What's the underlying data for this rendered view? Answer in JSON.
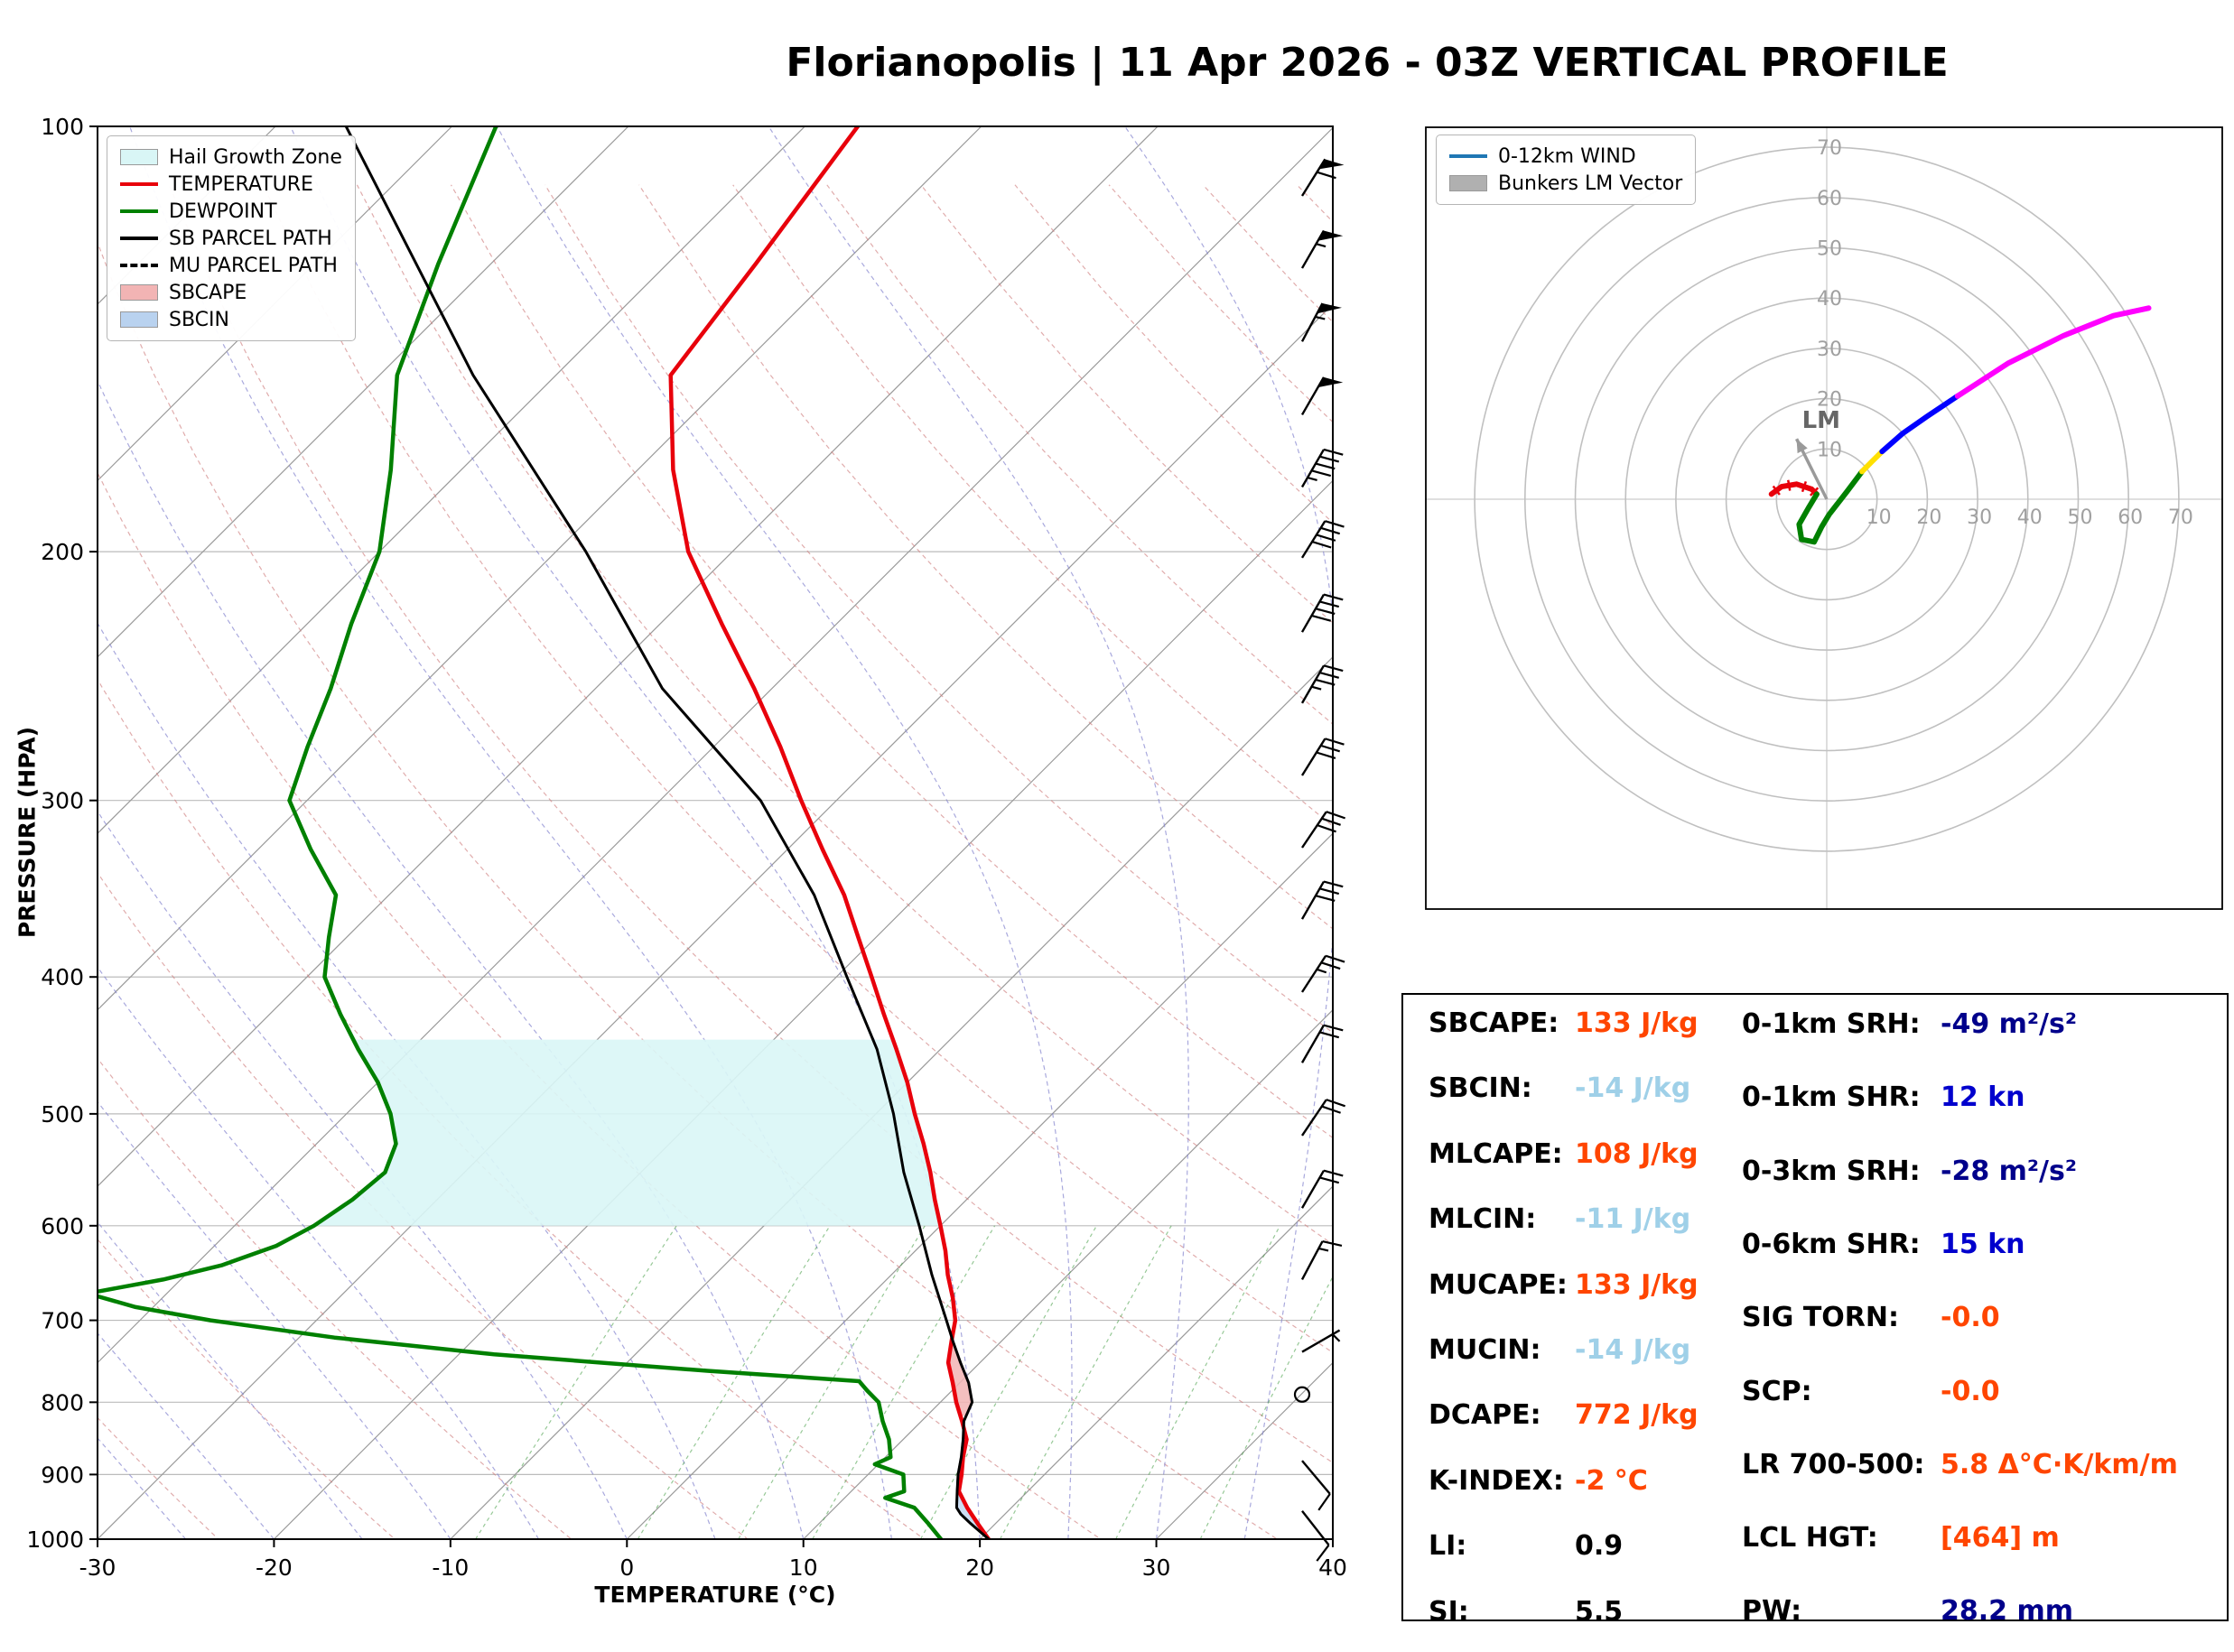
{
  "title": "Florianopolis | 11 Apr 2026 - 03Z VERTICAL PROFILE",
  "skewt": {
    "xlabel": "TEMPERATURE (°C)",
    "ylabel": "PRESSURE (HPA)",
    "x_ticks": [
      -30,
      -20,
      -10,
      0,
      10,
      20,
      30,
      40
    ],
    "p_ticks": [
      100,
      200,
      300,
      400,
      500,
      600,
      700,
      800,
      900,
      1000
    ],
    "legend": [
      {
        "label": "Hail Growth Zone",
        "swatch": "patch",
        "color": "#d9f6f6"
      },
      {
        "label": "TEMPERATURE",
        "swatch": "line",
        "color": "#e8000b"
      },
      {
        "label": "DEWPOINT",
        "swatch": "line",
        "color": "#008000"
      },
      {
        "label": "SB PARCEL PATH",
        "swatch": "line",
        "color": "#000000"
      },
      {
        "label": "MU PARCEL PATH",
        "swatch": "dash",
        "color": "#000000"
      },
      {
        "label": "SBCAPE",
        "swatch": "patch",
        "color": "#f2b4b4"
      },
      {
        "label": "SBCIN",
        "swatch": "patch",
        "color": "#b9d2ef"
      }
    ]
  },
  "chart_data": {
    "type": "line",
    "title": "Florianopolis | 11 Apr 2026 - 03Z VERTICAL PROFILE",
    "xlabel": "TEMPERATURE (°C)",
    "ylabel": "PRESSURE (HPA)",
    "xlim": [
      -30,
      40
    ],
    "ylim": [
      1000,
      100
    ],
    "y_scale": "log",
    "skew_deg": 45,
    "grid": {
      "isotherm_step": 10,
      "dry_adiabats_K": [
        240,
        440,
        10
      ],
      "moist_adiabat_starts_C": [
        -40,
        40,
        5
      ],
      "mixing_ratio_g_kg": [
        2,
        4,
        6,
        8,
        12,
        16,
        24,
        32
      ]
    },
    "series": [
      {
        "name": "TEMPERATURE",
        "color": "#e8000b",
        "points": [
          [
            1000,
            20.5
          ],
          [
            975,
            19.0
          ],
          [
            950,
            17.5
          ],
          [
            925,
            16.1
          ],
          [
            900,
            15.3
          ],
          [
            875,
            14.4
          ],
          [
            850,
            13.6
          ],
          [
            825,
            12.3
          ],
          [
            800,
            10.9
          ],
          [
            775,
            9.6
          ],
          [
            750,
            8.2
          ],
          [
            725,
            7.2
          ],
          [
            700,
            6.2
          ],
          [
            675,
            4.8
          ],
          [
            650,
            3.2
          ],
          [
            625,
            1.7
          ],
          [
            600,
            0.0
          ],
          [
            575,
            -1.8
          ],
          [
            550,
            -3.6
          ],
          [
            525,
            -5.6
          ],
          [
            500,
            -7.8
          ],
          [
            475,
            -10.0
          ],
          [
            450,
            -12.5
          ],
          [
            425,
            -15.2
          ],
          [
            400,
            -18.0
          ],
          [
            375,
            -21.0
          ],
          [
            350,
            -24.2
          ],
          [
            325,
            -28.0
          ],
          [
            300,
            -32.0
          ],
          [
            275,
            -36.2
          ],
          [
            250,
            -41.0
          ],
          [
            225,
            -46.5
          ],
          [
            200,
            -52.5
          ],
          [
            175,
            -58.0
          ],
          [
            150,
            -63.5
          ],
          [
            125,
            -65.0
          ],
          [
            100,
            -67.0
          ]
        ]
      },
      {
        "name": "DEWPOINT",
        "color": "#008000",
        "points": [
          [
            1000,
            17.8
          ],
          [
            975,
            16.2
          ],
          [
            950,
            14.5
          ],
          [
            935,
            12.3
          ],
          [
            925,
            13.0
          ],
          [
            900,
            12.0
          ],
          [
            885,
            9.8
          ],
          [
            875,
            10.3
          ],
          [
            850,
            9.2
          ],
          [
            825,
            7.8
          ],
          [
            800,
            6.5
          ],
          [
            785,
            5.2
          ],
          [
            773,
            4.2
          ],
          [
            760,
            -5.0
          ],
          [
            740,
            -18.0
          ],
          [
            720,
            -28.0
          ],
          [
            700,
            -36.0
          ],
          [
            685,
            -41.0
          ],
          [
            670,
            -44.5
          ],
          [
            655,
            -41.0
          ],
          [
            640,
            -38.5
          ],
          [
            620,
            -36.5
          ],
          [
            600,
            -35.5
          ],
          [
            575,
            -34.8
          ],
          [
            550,
            -34.5
          ],
          [
            525,
            -35.5
          ],
          [
            500,
            -37.5
          ],
          [
            475,
            -40.0
          ],
          [
            450,
            -43.0
          ],
          [
            425,
            -46.0
          ],
          [
            400,
            -49.0
          ],
          [
            375,
            -51.0
          ],
          [
            350,
            -53.0
          ],
          [
            325,
            -57.0
          ],
          [
            300,
            -61.0
          ],
          [
            275,
            -63.0
          ],
          [
            250,
            -65.0
          ],
          [
            225,
            -67.5
          ],
          [
            200,
            -70.0
          ],
          [
            175,
            -74.0
          ],
          [
            150,
            -79.0
          ],
          [
            125,
            -83.0
          ],
          [
            100,
            -87.5
          ]
        ]
      },
      {
        "name": "SB PARCEL PATH",
        "color": "#000000",
        "points": [
          [
            1000,
            20.5
          ],
          [
            975,
            18.6
          ],
          [
            960,
            17.5
          ],
          [
            950,
            16.9
          ],
          [
            925,
            16.0
          ],
          [
            900,
            15.1
          ],
          [
            875,
            14.3
          ],
          [
            850,
            13.4
          ],
          [
            825,
            12.4
          ],
          [
            800,
            11.8
          ],
          [
            775,
            10.5
          ],
          [
            750,
            8.9
          ],
          [
            725,
            7.3
          ],
          [
            700,
            5.7
          ],
          [
            650,
            2.3
          ],
          [
            600,
            -1.2
          ],
          [
            550,
            -5.1
          ],
          [
            500,
            -9.0
          ],
          [
            450,
            -13.6
          ],
          [
            400,
            -19.4
          ],
          [
            350,
            -25.9
          ],
          [
            300,
            -34.3
          ],
          [
            250,
            -46.2
          ],
          [
            200,
            -58.3
          ],
          [
            150,
            -74.7
          ],
          [
            100,
            -96.0
          ]
        ]
      },
      {
        "name": "MU PARCEL PATH",
        "color": "#000000",
        "dashed": true,
        "same_as": "SB PARCEL PATH",
        "points": []
      }
    ],
    "shaded_zones": [
      {
        "name": "Hail Growth Zone",
        "color": "#d9f6f6",
        "opacity": 0.9,
        "p_range": [
          443,
          600
        ],
        "left": "DEWPOINT",
        "right": "TEMPERATURE",
        "clamp": false
      },
      {
        "name": "SBCAPE",
        "color": "#f2b4b4",
        "opacity": 0.85,
        "p_range": [
          700,
          818
        ],
        "left": "TEMPERATURE",
        "right": "SB PARCEL PATH",
        "clamp": true
      },
      {
        "name": "SBCIN",
        "color": "#b9d2ef",
        "opacity": 0.75,
        "p_range": [
          818,
          1000
        ],
        "left": "SB PARCEL PATH",
        "right": "TEMPERATURE",
        "clamp": true
      }
    ],
    "wind_barbs": [
      {
        "p": 112,
        "spd": 60,
        "az": 32
      },
      {
        "p": 126,
        "spd": 55,
        "az": 30
      },
      {
        "p": 142,
        "spd": 55,
        "az": 28
      },
      {
        "p": 160,
        "spd": 50,
        "az": 30
      },
      {
        "p": 180,
        "spd": 45,
        "az": 30
      },
      {
        "p": 202,
        "spd": 40,
        "az": 32
      },
      {
        "p": 228,
        "spd": 38,
        "az": 30
      },
      {
        "p": 256,
        "spd": 35,
        "az": 30
      },
      {
        "p": 288,
        "spd": 32,
        "az": 32
      },
      {
        "p": 324,
        "spd": 30,
        "az": 34
      },
      {
        "p": 364,
        "spd": 28,
        "az": 30
      },
      {
        "p": 410,
        "spd": 25,
        "az": 33
      },
      {
        "p": 460,
        "spd": 22,
        "az": 30
      },
      {
        "p": 518,
        "spd": 20,
        "az": 34
      },
      {
        "p": 583,
        "spd": 18,
        "az": 30
      },
      {
        "p": 655,
        "spd": 15,
        "az": 28
      },
      {
        "p": 737,
        "spd": 5,
        "az": 60
      },
      {
        "p": 790,
        "spd": 0,
        "az": 0,
        "calm": true
      },
      {
        "p": 880,
        "spd": 8,
        "az": 140
      },
      {
        "p": 955,
        "spd": 10,
        "az": 142
      }
    ]
  },
  "hodograph": {
    "legend": [
      {
        "label": "0-12km WIND",
        "swatch": "line",
        "color": "#1f77b4"
      },
      {
        "label": "Bunkers LM Vector",
        "swatch": "patch",
        "color": "#b0b0b0"
      }
    ],
    "axis_max": 70,
    "ring_interval": 10,
    "ring_labels": [
      10,
      20,
      30,
      40,
      50,
      60,
      70
    ],
    "lm_label": "LM",
    "lm_vector_kt": [
      -6,
      12
    ],
    "trace_segments": [
      {
        "color": "#e8000b",
        "ticks": true,
        "points": [
          [
            -11,
            1
          ],
          [
            -9,
            2.5
          ],
          [
            -6,
            3
          ],
          [
            -3,
            2
          ],
          [
            -2,
            1
          ]
        ]
      },
      {
        "color": "#008000",
        "points": [
          [
            -2,
            1
          ],
          [
            -3.5,
            -1.5
          ],
          [
            -5.5,
            -5
          ],
          [
            -5,
            -8
          ],
          [
            -2.5,
            -8.5
          ],
          [
            -1,
            -5.5
          ],
          [
            0.5,
            -3
          ],
          [
            4,
            1.5
          ],
          [
            7,
            5.5
          ]
        ]
      },
      {
        "color": "#ffe000",
        "points": [
          [
            7,
            5.5
          ],
          [
            9,
            7.5
          ],
          [
            11,
            9.5
          ]
        ]
      },
      {
        "color": "#0000ff",
        "points": [
          [
            11,
            9.5
          ],
          [
            15,
            13
          ],
          [
            20,
            16.5
          ],
          [
            26,
            20.5
          ]
        ]
      },
      {
        "color": "#ff00ff",
        "points": [
          [
            26,
            20.5
          ],
          [
            36,
            27
          ],
          [
            47,
            32.5
          ],
          [
            57,
            36.5
          ],
          [
            64,
            38
          ]
        ]
      }
    ]
  },
  "indices": {
    "left": [
      {
        "label": "SBCAPE:",
        "value": "133 J/kg",
        "color": "orange"
      },
      {
        "label": "SBCIN:",
        "value": "-14 J/kg",
        "color": "lightblue"
      },
      {
        "label": "MLCAPE:",
        "value": "108 J/kg",
        "color": "orange"
      },
      {
        "label": "MLCIN:",
        "value": "-11 J/kg",
        "color": "lightblue"
      },
      {
        "label": "MUCAPE:",
        "value": "133 J/kg",
        "color": "orange"
      },
      {
        "label": "MUCIN:",
        "value": "-14 J/kg",
        "color": "lightblue"
      },
      {
        "label": "DCAPE:",
        "value": "772 J/kg",
        "color": "orange"
      },
      {
        "label": "K-INDEX:",
        "value": "-2 °C",
        "color": "orange"
      },
      {
        "label": "LI:",
        "value": "0.9",
        "color": "black"
      },
      {
        "label": "SI:",
        "value": "5.5",
        "color": "black"
      }
    ],
    "right": [
      {
        "label": "0-1km SRH:",
        "value": "-49 m²/s²",
        "color": "navy"
      },
      {
        "label": "0-1km SHR:",
        "value": "12 kn",
        "color": "blue"
      },
      {
        "label": "0-3km SRH:",
        "value": "-28 m²/s²",
        "color": "navy"
      },
      {
        "label": "0-6km SHR:",
        "value": "15 kn",
        "color": "blue"
      },
      {
        "label": "SIG TORN:",
        "value": "-0.0",
        "color": "orange"
      },
      {
        "label": "SCP:",
        "value": "-0.0",
        "color": "orange"
      },
      {
        "label": "LR 700-500:",
        "value": "5.8 Δ°C·K/km/m",
        "color": "orange"
      },
      {
        "label": "LCL HGT:",
        "value": "[464] m",
        "color": "orange"
      },
      {
        "label": "PW:",
        "value": "28.2 mm",
        "color": "navy"
      }
    ]
  },
  "colors": {
    "orange": "#ff4500",
    "lightblue": "#9fd0e8",
    "navy": "#00008b",
    "blue": "#0000cd",
    "black": "#000000"
  }
}
